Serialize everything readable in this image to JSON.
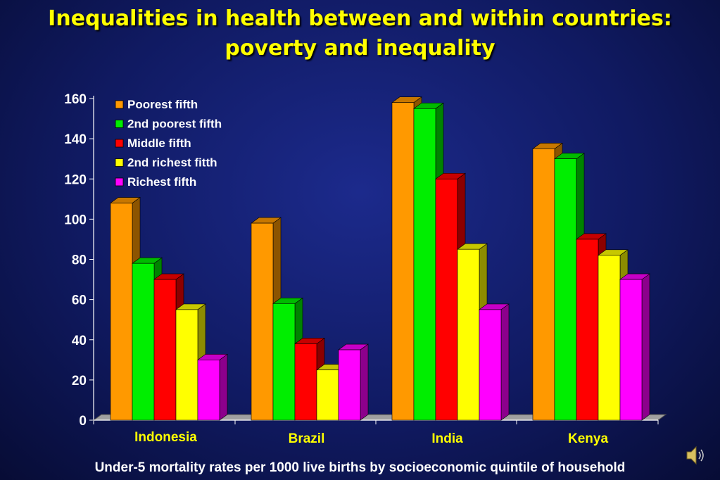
{
  "slide": {
    "title_line1": "Inequalities in health between and within countries:",
    "title_line2": "poverty and inequality",
    "caption": "Under-5 mortality rates per 1000 live births by socioeconomic quintile of household",
    "speaker_icon": "speaker-icon"
  },
  "chart_data": {
    "type": "bar",
    "categories": [
      "Indonesia",
      "Brazil",
      "India",
      "Kenya"
    ],
    "series": [
      {
        "name": "Poorest fifth",
        "values": [
          108,
          98,
          158,
          135
        ],
        "color": "#ff9900"
      },
      {
        "name": "2nd poorest fifth",
        "values": [
          78,
          58,
          155,
          130
        ],
        "color": "#00ee00"
      },
      {
        "name": "Middle fifth",
        "values": [
          70,
          38,
          120,
          90
        ],
        "color": "#ff0000"
      },
      {
        "name": "2nd richest fitth",
        "values": [
          55,
          25,
          85,
          82
        ],
        "color": "#ffff00"
      },
      {
        "name": "Richest fifth",
        "values": [
          30,
          35,
          55,
          70
        ],
        "color": "#ff00ff"
      }
    ],
    "yticks": [
      0,
      20,
      40,
      60,
      80,
      100,
      120,
      140,
      160
    ],
    "ylim": [
      0,
      160
    ],
    "legend_position": "top-left",
    "grid": false
  }
}
